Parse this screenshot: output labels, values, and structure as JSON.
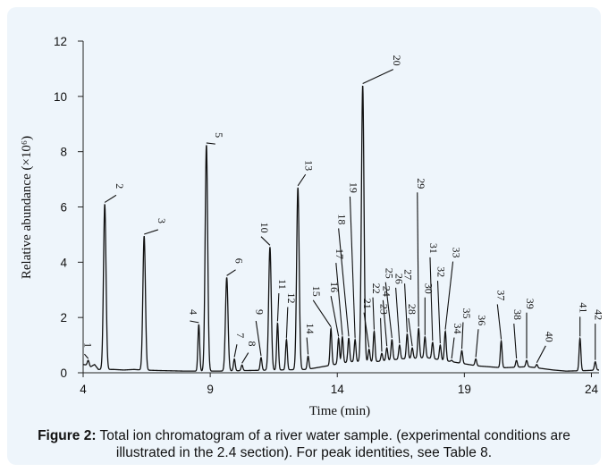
{
  "chart_data": {
    "type": "line",
    "xlabel": "Time (min)",
    "ylabel": "Relative abundance (×10⁶)",
    "xlim": [
      4,
      24.3
    ],
    "ylim": [
      0,
      12
    ],
    "xticks": [
      "4",
      "9",
      "14",
      "19",
      "24"
    ],
    "yticks": [
      "0",
      "2",
      "4",
      "6",
      "8",
      "10",
      "12"
    ],
    "grid": false,
    "baseline": [
      [
        4.0,
        0.3
      ],
      [
        4.15,
        0.28
      ],
      [
        4.3,
        0.22
      ],
      [
        4.45,
        0.3
      ],
      [
        4.6,
        0.12
      ],
      [
        5.2,
        0.12
      ],
      [
        5.6,
        0.1
      ],
      [
        6.0,
        0.12
      ],
      [
        6.3,
        0.1
      ],
      [
        7.0,
        0.08
      ],
      [
        8.0,
        0.06
      ],
      [
        9.3,
        0.06
      ],
      [
        10.4,
        0.08
      ],
      [
        11.6,
        0.1
      ],
      [
        12.8,
        0.12
      ],
      [
        13.6,
        0.25
      ],
      [
        14.5,
        0.4
      ],
      [
        15.5,
        0.4
      ],
      [
        16.5,
        0.5
      ],
      [
        17.5,
        0.55
      ],
      [
        18.5,
        0.4
      ],
      [
        19.5,
        0.25
      ],
      [
        20.5,
        0.18
      ],
      [
        21.5,
        0.22
      ],
      [
        22.5,
        0.1
      ],
      [
        23.0,
        0.06
      ],
      [
        23.8,
        0.08
      ],
      [
        24.3,
        0.1
      ]
    ],
    "peaks": [
      {
        "label": "1",
        "x": 4.2,
        "y": 0.45
      },
      {
        "label": "2",
        "x": 4.85,
        "y": 6.1
      },
      {
        "label": "3",
        "x": 6.4,
        "y": 4.95
      },
      {
        "label": "4",
        "x": 8.55,
        "y": 1.75
      },
      {
        "label": "5",
        "x": 8.85,
        "y": 8.25
      },
      {
        "label": "6",
        "x": 9.65,
        "y": 3.45
      },
      {
        "label": "7",
        "x": 9.95,
        "y": 0.5
      },
      {
        "label": "8",
        "x": 10.25,
        "y": 0.28
      },
      {
        "label": "9",
        "x": 11.0,
        "y": 0.55
      },
      {
        "label": "10",
        "x": 11.35,
        "y": 4.55
      },
      {
        "label": "11",
        "x": 11.65,
        "y": 1.8
      },
      {
        "label": "12",
        "x": 12.0,
        "y": 1.2
      },
      {
        "label": "13",
        "x": 12.45,
        "y": 6.7
      },
      {
        "label": "14",
        "x": 12.85,
        "y": 0.6
      },
      {
        "label": "15",
        "x": 13.75,
        "y": 1.6
      },
      {
        "label": "16",
        "x": 14.05,
        "y": 1.25
      },
      {
        "label": "17",
        "x": 14.2,
        "y": 1.3
      },
      {
        "label": "18",
        "x": 14.45,
        "y": 1.25
      },
      {
        "label": "19",
        "x": 14.7,
        "y": 1.2
      },
      {
        "label": "20",
        "x": 15.0,
        "y": 10.4
      },
      {
        "label": "21",
        "x": 15.25,
        "y": 0.85
      },
      {
        "label": "22",
        "x": 15.45,
        "y": 1.5
      },
      {
        "label": "23",
        "x": 15.75,
        "y": 0.7
      },
      {
        "label": "24",
        "x": 15.95,
        "y": 0.9
      },
      {
        "label": "25",
        "x": 16.15,
        "y": 1.2
      },
      {
        "label": "26",
        "x": 16.45,
        "y": 1.0
      },
      {
        "label": "27",
        "x": 16.75,
        "y": 1.4
      },
      {
        "label": "28",
        "x": 16.95,
        "y": 0.9
      },
      {
        "label": "29",
        "x": 17.2,
        "y": 1.6
      },
      {
        "label": "30",
        "x": 17.45,
        "y": 1.3
      },
      {
        "label": "31",
        "x": 17.75,
        "y": 1.1
      },
      {
        "label": "32",
        "x": 18.05,
        "y": 1.0
      },
      {
        "label": "33",
        "x": 18.25,
        "y": 1.5
      },
      {
        "label": "34",
        "x": 18.5,
        "y": 0.45
      },
      {
        "label": "35",
        "x": 18.9,
        "y": 0.8
      },
      {
        "label": "36",
        "x": 19.45,
        "y": 0.5
      },
      {
        "label": "37",
        "x": 20.45,
        "y": 1.15
      },
      {
        "label": "38",
        "x": 21.05,
        "y": 0.45
      },
      {
        "label": "39",
        "x": 21.45,
        "y": 0.45
      },
      {
        "label": "40",
        "x": 21.85,
        "y": 0.3
      },
      {
        "label": "41",
        "x": 23.55,
        "y": 1.25
      },
      {
        "label": "42",
        "x": 24.15,
        "y": 0.4
      }
    ],
    "annotations": [
      {
        "label": "1",
        "tx": 4.05,
        "ty": 1.0
      },
      {
        "label": "2",
        "tx": 5.3,
        "ty": 6.75
      },
      {
        "label": "3",
        "tx": 6.95,
        "ty": 5.5
      },
      {
        "label": "4",
        "tx": 8.2,
        "ty": 2.2
      },
      {
        "label": "5",
        "tx": 9.2,
        "ty": 8.6
      },
      {
        "label": "6",
        "tx": 10.0,
        "ty": 4.05
      },
      {
        "label": "7",
        "tx": 10.05,
        "ty": 1.35
      },
      {
        "label": "8",
        "tx": 10.5,
        "ty": 1.05
      },
      {
        "label": "9",
        "tx": 10.8,
        "ty": 2.2
      },
      {
        "label": "10",
        "tx": 11.0,
        "ty": 5.25
      },
      {
        "label": "11",
        "tx": 11.7,
        "ty": 3.2
      },
      {
        "label": "12",
        "tx": 12.05,
        "ty": 2.7
      },
      {
        "label": "13",
        "tx": 12.75,
        "ty": 7.5
      },
      {
        "label": "14",
        "tx": 12.8,
        "ty": 1.6
      },
      {
        "label": "15",
        "tx": 13.05,
        "ty": 2.95
      },
      {
        "label": "16",
        "tx": 13.75,
        "ty": 3.1
      },
      {
        "label": "17",
        "tx": 13.95,
        "ty": 4.3
      },
      {
        "label": "18",
        "tx": 14.05,
        "ty": 5.55
      },
      {
        "label": "19",
        "tx": 14.5,
        "ty": 6.7
      },
      {
        "label": "20",
        "tx": 16.2,
        "ty": 11.3
      },
      {
        "label": "21",
        "tx": 15.05,
        "ty": 2.5
      },
      {
        "label": "22",
        "tx": 15.4,
        "ty": 3.05
      },
      {
        "label": "23",
        "tx": 15.7,
        "ty": 2.3
      },
      {
        "label": "24",
        "tx": 15.8,
        "ty": 2.95
      },
      {
        "label": "25",
        "tx": 15.9,
        "ty": 3.6
      },
      {
        "label": "26",
        "tx": 16.3,
        "ty": 3.4
      },
      {
        "label": "27",
        "tx": 16.65,
        "ty": 3.55
      },
      {
        "label": "28",
        "tx": 16.8,
        "ty": 2.3
      },
      {
        "label": "29",
        "tx": 17.15,
        "ty": 6.85
      },
      {
        "label": "30",
        "tx": 17.45,
        "ty": 3.05
      },
      {
        "label": "31",
        "tx": 17.65,
        "ty": 4.5
      },
      {
        "label": "32",
        "tx": 17.95,
        "ty": 3.65
      },
      {
        "label": "33",
        "tx": 18.55,
        "ty": 4.35
      },
      {
        "label": "34",
        "tx": 18.6,
        "ty": 1.6
      },
      {
        "label": "35",
        "tx": 18.95,
        "ty": 2.15
      },
      {
        "label": "36",
        "tx": 19.55,
        "ty": 1.9
      },
      {
        "label": "37",
        "tx": 20.3,
        "ty": 2.8
      },
      {
        "label": "38",
        "tx": 20.95,
        "ty": 2.1
      },
      {
        "label": "39",
        "tx": 21.45,
        "ty": 2.5
      },
      {
        "label": "40",
        "tx": 22.2,
        "ty": 1.3
      },
      {
        "label": "41",
        "tx": 23.55,
        "ty": 2.35
      },
      {
        "label": "42",
        "tx": 24.15,
        "ty": 2.1
      }
    ]
  },
  "caption": {
    "label": "Figure 2:",
    "text": " Total ion chromatogram of a river water sample. (experimental conditions are illustrated in the 2.4 section). For peak identities, see Table 8."
  }
}
